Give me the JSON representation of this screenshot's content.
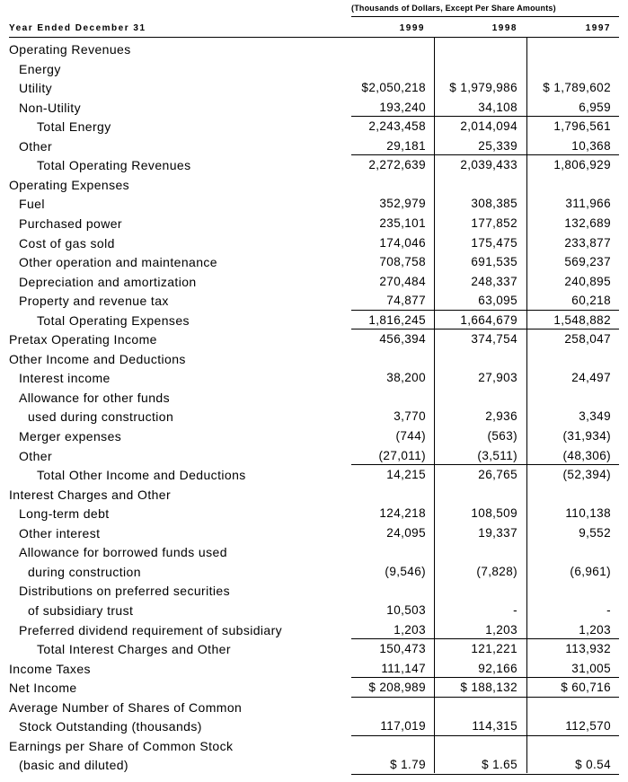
{
  "header": {
    "caption": "(Thousands of Dollars, Except Per Share Amounts)",
    "year_label": "Year Ended December 31",
    "years": [
      "1999",
      "1998",
      "1997"
    ]
  },
  "rows": [
    {
      "label": "Operating Revenues",
      "indent": 0,
      "values": [
        "",
        "",
        ""
      ]
    },
    {
      "label": "Energy",
      "indent": 1,
      "values": [
        "",
        "",
        ""
      ]
    },
    {
      "label": "Utility",
      "indent": 1,
      "values": [
        "$2,050,218",
        "$ 1,979,986",
        "$ 1,789,602"
      ]
    },
    {
      "label": "Non-Utility",
      "indent": 1,
      "values": [
        "193,240",
        "34,108",
        "6,959"
      ],
      "rule_below": true
    },
    {
      "label": "Total Energy",
      "indent": 3,
      "values": [
        "2,243,458",
        "2,014,094",
        "1,796,561"
      ]
    },
    {
      "label": "Other",
      "indent": 1,
      "values": [
        "29,181",
        "25,339",
        "10,368"
      ],
      "rule_below": true
    },
    {
      "label": "Total Operating Revenues",
      "indent": 3,
      "values": [
        "2,272,639",
        "2,039,433",
        "1,806,929"
      ]
    },
    {
      "label": "Operating Expenses",
      "indent": 0,
      "values": [
        "",
        "",
        ""
      ]
    },
    {
      "label": "Fuel",
      "indent": 1,
      "values": [
        "352,979",
        "308,385",
        "311,966"
      ]
    },
    {
      "label": "Purchased power",
      "indent": 1,
      "values": [
        "235,101",
        "177,852",
        "132,689"
      ]
    },
    {
      "label": "Cost of gas sold",
      "indent": 1,
      "values": [
        "174,046",
        "175,475",
        "233,877"
      ]
    },
    {
      "label": "Other operation and maintenance",
      "indent": 1,
      "values": [
        "708,758",
        "691,535",
        "569,237"
      ]
    },
    {
      "label": "Depreciation and amortization",
      "indent": 1,
      "values": [
        "270,484",
        "248,337",
        "240,895"
      ]
    },
    {
      "label": "Property and revenue tax",
      "indent": 1,
      "values": [
        "74,877",
        "63,095",
        "60,218"
      ],
      "rule_below": true
    },
    {
      "label": "Total Operating Expenses",
      "indent": 3,
      "values": [
        "1,816,245",
        "1,664,679",
        "1,548,882"
      ],
      "rule_below": true
    },
    {
      "label": "Pretax Operating Income",
      "indent": 0,
      "values": [
        "456,394",
        "374,754",
        "258,047"
      ]
    },
    {
      "label": "Other Income and Deductions",
      "indent": 0,
      "values": [
        "",
        "",
        ""
      ]
    },
    {
      "label": "Interest income",
      "indent": 1,
      "values": [
        "38,200",
        "27,903",
        "24,497"
      ]
    },
    {
      "label": "Allowance for other funds",
      "indent": 1,
      "values": [
        "",
        "",
        ""
      ]
    },
    {
      "label": "used during construction",
      "indent": 2,
      "values": [
        "3,770",
        "2,936",
        "3,349"
      ]
    },
    {
      "label": "Merger expenses",
      "indent": 1,
      "values": [
        "(744)",
        "(563)",
        "(31,934)"
      ]
    },
    {
      "label": "Other",
      "indent": 1,
      "values": [
        "(27,011)",
        "(3,511)",
        "(48,306)"
      ],
      "rule_below": true
    },
    {
      "label": "Total Other Income and Deductions",
      "indent": 3,
      "values": [
        "14,215",
        "26,765",
        "(52,394)"
      ]
    },
    {
      "label": "Interest Charges and Other",
      "indent": 0,
      "values": [
        "",
        "",
        ""
      ]
    },
    {
      "label": "Long-term debt",
      "indent": 1,
      "values": [
        "124,218",
        "108,509",
        "110,138"
      ]
    },
    {
      "label": "Other interest",
      "indent": 1,
      "values": [
        "24,095",
        "19,337",
        "9,552"
      ]
    },
    {
      "label": "Allowance for borrowed funds used",
      "indent": 1,
      "values": [
        "",
        "",
        ""
      ]
    },
    {
      "label": "during construction",
      "indent": 2,
      "values": [
        "(9,546)",
        "(7,828)",
        "(6,961)"
      ]
    },
    {
      "label": "Distributions on preferred securities",
      "indent": 1,
      "values": [
        "",
        "",
        ""
      ]
    },
    {
      "label": "of subsidiary trust",
      "indent": 2,
      "values": [
        "10,503",
        "-",
        "-"
      ]
    },
    {
      "label": "Preferred dividend requirement of subsidiary",
      "indent": 1,
      "values": [
        "1,203",
        "1,203",
        "1,203"
      ],
      "rule_below": true
    },
    {
      "label": "Total Interest Charges and Other",
      "indent": 3,
      "values": [
        "150,473",
        "121,221",
        "113,932"
      ]
    },
    {
      "label": "Income Taxes",
      "indent": 0,
      "values": [
        "111,147",
        "92,166",
        "31,005"
      ],
      "rule_below": true
    },
    {
      "label": "Net Income",
      "indent": 0,
      "values": [
        "$ 208,989",
        "$ 188,132",
        "$ 60,716"
      ],
      "rule_below": true
    },
    {
      "label": "Average Number of Shares of Common",
      "indent": 0,
      "values": [
        "",
        "",
        ""
      ]
    },
    {
      "label": "Stock Outstanding (thousands)",
      "indent": 1,
      "values": [
        "117,019",
        "114,315",
        "112,570"
      ],
      "rule_below": true
    },
    {
      "label": "Earnings per Share of Common Stock",
      "indent": 0,
      "values": [
        "",
        "",
        ""
      ]
    },
    {
      "label": "(basic and diluted)",
      "indent": 1,
      "values": [
        "$ 1.79",
        "$ 1.65",
        "$ 0.54"
      ],
      "rule_below": true
    }
  ]
}
